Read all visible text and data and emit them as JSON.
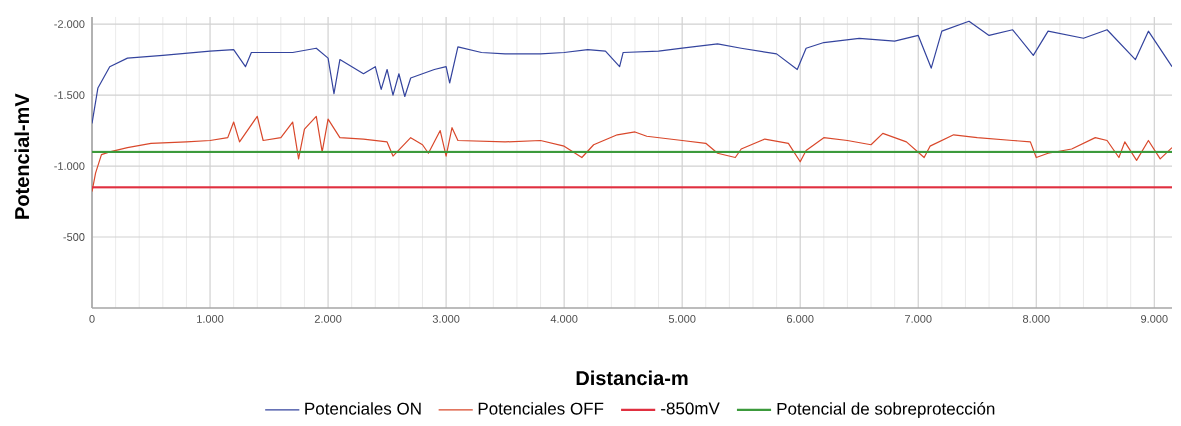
{
  "chart_data": {
    "type": "line",
    "xlabel": "Distancia-m",
    "ylabel": "Potencial-mV",
    "xlim": [
      0,
      9150
    ],
    "ylim": [
      0,
      -2050
    ],
    "xticks": [
      0,
      {
        "value": 1000,
        "label": "1.000"
      },
      {
        "value": 2000,
        "label": "2.000"
      },
      {
        "value": 3000,
        "label": "3.000"
      },
      {
        "value": 4000,
        "label": "4.000"
      },
      {
        "value": 5000,
        "label": "5.000"
      },
      {
        "value": 6000,
        "label": "6.000"
      },
      {
        "value": 7000,
        "label": "7.000"
      },
      {
        "value": 8000,
        "label": "8.000"
      },
      {
        "value": 9000,
        "label": "9.000"
      }
    ],
    "yticks": [
      {
        "value": -2000,
        "label": "-2.000"
      },
      {
        "value": -1500,
        "label": "-1.500"
      },
      {
        "value": -1000,
        "label": "-1.000"
      },
      -500
    ],
    "grid": true,
    "legend": "bottom",
    "marker": "none",
    "line_style": "solid",
    "series": [
      {
        "name": "Potenciales ON",
        "color": "#34449e",
        "x": [
          0,
          50,
          150,
          300,
          600,
          1000,
          1200,
          1300,
          1350,
          1700,
          1900,
          2000,
          2050,
          2100,
          2300,
          2400,
          2450,
          2500,
          2550,
          2600,
          2650,
          2700,
          2800,
          2900,
          3000,
          3030,
          3100,
          3300,
          3500,
          3800,
          4000,
          4200,
          4350,
          4470,
          4500,
          4800,
          5000,
          5300,
          5500,
          5800,
          5975,
          6050,
          6200,
          6500,
          6800,
          7000,
          7110,
          7200,
          7430,
          7600,
          7800,
          7975,
          8100,
          8400,
          8600,
          8840,
          8950,
          9150
        ],
        "values": [
          -1300,
          -1550,
          -1700,
          -1760,
          -1780,
          -1810,
          -1820,
          -1700,
          -1800,
          -1800,
          -1830,
          -1760,
          -1510,
          -1750,
          -1650,
          -1700,
          -1540,
          -1680,
          -1500,
          -1650,
          -1490,
          -1620,
          -1650,
          -1680,
          -1700,
          -1585,
          -1840,
          -1800,
          -1790,
          -1790,
          -1800,
          -1820,
          -1810,
          -1700,
          -1800,
          -1810,
          -1830,
          -1860,
          -1830,
          -1790,
          -1680,
          -1830,
          -1870,
          -1900,
          -1880,
          -1920,
          -1690,
          -1950,
          -2020,
          -1920,
          -1960,
          -1780,
          -1950,
          -1900,
          -1960,
          -1750,
          -1950,
          -1700
        ]
      },
      {
        "name": "Potenciales OFF",
        "color": "#d9482b",
        "x": [
          0,
          30,
          80,
          150,
          300,
          500,
          800,
          1000,
          1150,
          1200,
          1250,
          1400,
          1450,
          1600,
          1700,
          1750,
          1800,
          1900,
          1950,
          2000,
          2100,
          2300,
          2500,
          2550,
          2700,
          2800,
          2850,
          2950,
          3000,
          3050,
          3100,
          3500,
          3800,
          4000,
          4150,
          4250,
          4450,
          4600,
          4700,
          5000,
          5200,
          5300,
          5450,
          5500,
          5700,
          5900,
          6000,
          6050,
          6200,
          6400,
          6600,
          6700,
          6900,
          7050,
          7100,
          7300,
          7500,
          7800,
          7950,
          8000,
          8100,
          8300,
          8500,
          8600,
          8700,
          8750,
          8850,
          8950,
          9050,
          9150
        ],
        "values": [
          -820,
          -950,
          -1080,
          -1100,
          -1130,
          -1160,
          -1170,
          -1180,
          -1200,
          -1310,
          -1170,
          -1350,
          -1180,
          -1200,
          -1310,
          -1050,
          -1260,
          -1350,
          -1100,
          -1330,
          -1200,
          -1190,
          -1170,
          -1070,
          -1200,
          -1150,
          -1090,
          -1250,
          -1070,
          -1270,
          -1180,
          -1170,
          -1180,
          -1140,
          -1060,
          -1150,
          -1220,
          -1240,
          -1210,
          -1180,
          -1160,
          -1090,
          -1060,
          -1120,
          -1190,
          -1160,
          -1030,
          -1110,
          -1200,
          -1180,
          -1150,
          -1230,
          -1170,
          -1060,
          -1140,
          -1220,
          -1200,
          -1180,
          -1170,
          -1060,
          -1090,
          -1120,
          -1200,
          -1180,
          -1060,
          -1170,
          -1040,
          -1180,
          -1050,
          -1130
        ]
      }
    ],
    "ref_lines": [
      {
        "axis": "y",
        "value": -850,
        "label": "-850mV",
        "color": "#e03040"
      },
      {
        "axis": "y",
        "value": -1100,
        "label": "Potencial de sobreprotección",
        "color": "#3c9a3c"
      }
    ]
  }
}
